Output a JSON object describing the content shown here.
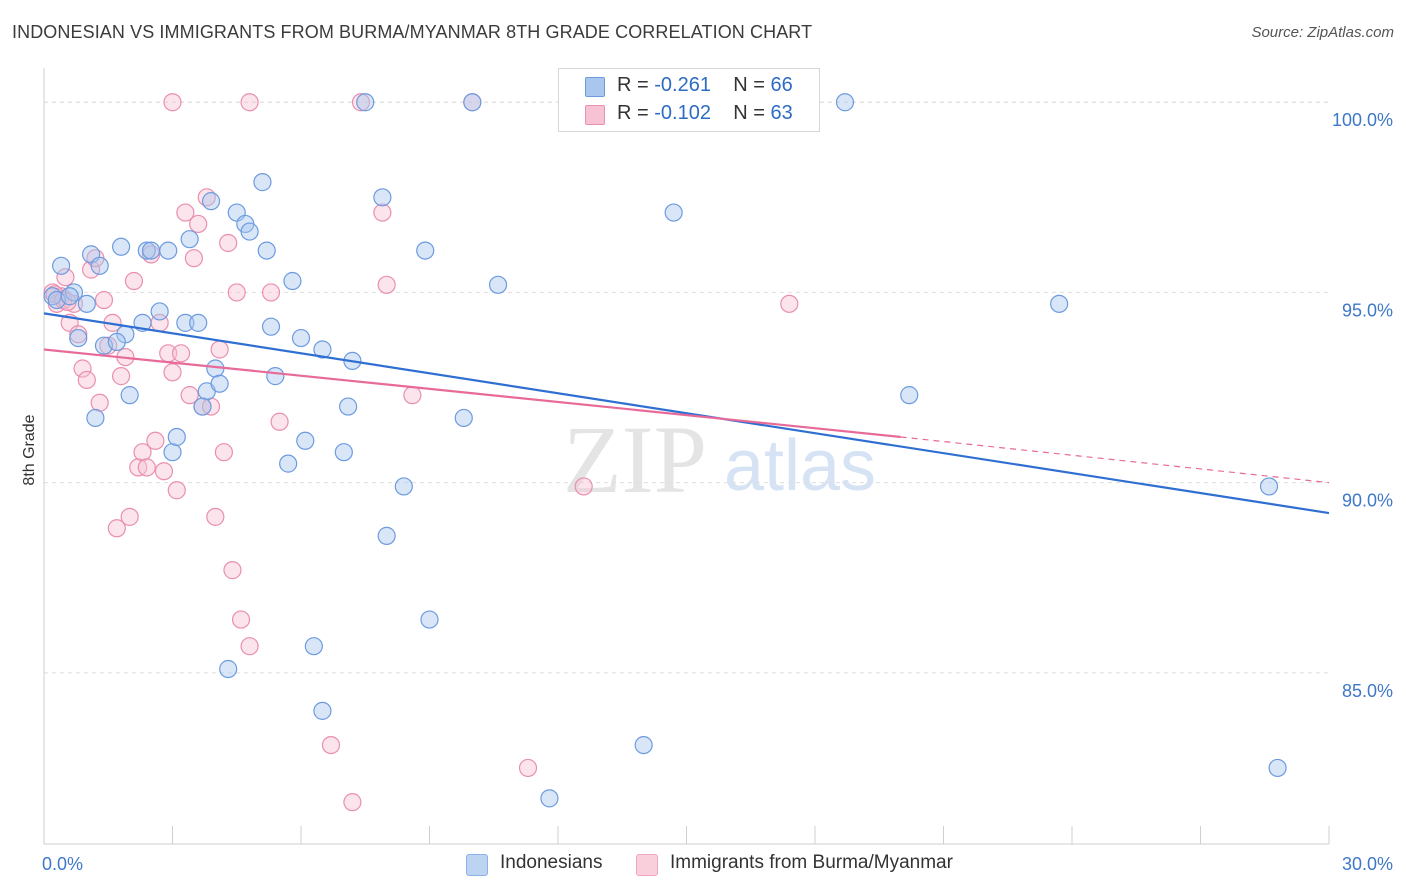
{
  "title": "INDONESIAN VS IMMIGRANTS FROM BURMA/MYANMAR 8TH GRADE CORRELATION CHART",
  "source": "Source: ZipAtlas.com",
  "watermark": {
    "zip": "ZIP",
    "atlas": "atlas"
  },
  "legend_top": [
    {
      "r_label": "R =",
      "r_value": "-0.261",
      "n_label": "N =",
      "n_value": "66"
    },
    {
      "r_label": "R =",
      "r_value": "-0.102",
      "n_label": "N =",
      "n_value": "63"
    }
  ],
  "colors": {
    "blue_fill": "#a9c7ee",
    "blue_stroke": "#6d9be0",
    "blue_line": "#2f6fd1",
    "pink_fill": "#f7c3d4",
    "pink_stroke": "#ea8fae",
    "pink_line": "#e86a98",
    "axis_text": "#3e78c8",
    "grid": "#dedede"
  },
  "chart_data": {
    "type": "scatter",
    "title": "INDONESIAN VS IMMIGRANTS FROM BURMA/MYANMAR 8TH GRADE CORRELATION CHART",
    "xlabel": "",
    "ylabel": "8th Grade",
    "xlim": [
      0,
      30
    ],
    "ylim": [
      80.5,
      100.9
    ],
    "x_tick_labels": [
      "0.0%",
      "30.0%"
    ],
    "y_ticks": [
      85,
      90,
      95,
      100
    ],
    "y_tick_labels": [
      "85.0%",
      "90.0%",
      "95.0%",
      "100.0%"
    ],
    "grid": true,
    "legend_position": "bottom",
    "series": [
      {
        "name": "Indonesians",
        "trend": {
          "x": [
            0,
            30
          ],
          "y": [
            94.45,
            89.2
          ]
        },
        "points": [
          [
            0.2,
            94.9
          ],
          [
            0.4,
            95.7
          ],
          [
            0.7,
            95.0
          ],
          [
            1.0,
            94.7
          ],
          [
            0.8,
            93.8
          ],
          [
            1.1,
            96.0
          ],
          [
            1.3,
            95.7
          ],
          [
            1.2,
            91.7
          ],
          [
            1.4,
            93.6
          ],
          [
            1.9,
            93.9
          ],
          [
            1.7,
            93.7
          ],
          [
            1.8,
            96.2
          ],
          [
            2.0,
            92.3
          ],
          [
            2.3,
            94.2
          ],
          [
            2.4,
            96.1
          ],
          [
            2.5,
            96.1
          ],
          [
            2.7,
            94.5
          ],
          [
            2.9,
            96.1
          ],
          [
            3.0,
            90.8
          ],
          [
            3.1,
            91.2
          ],
          [
            3.3,
            94.2
          ],
          [
            3.4,
            96.4
          ],
          [
            3.6,
            94.2
          ],
          [
            3.8,
            92.4
          ],
          [
            3.7,
            92.0
          ],
          [
            3.9,
            97.4
          ],
          [
            4.0,
            93.0
          ],
          [
            4.1,
            92.6
          ],
          [
            4.3,
            85.1
          ],
          [
            4.5,
            97.1
          ],
          [
            4.7,
            96.8
          ],
          [
            4.8,
            96.6
          ],
          [
            5.1,
            97.9
          ],
          [
            5.2,
            96.1
          ],
          [
            5.3,
            94.1
          ],
          [
            5.4,
            92.8
          ],
          [
            5.7,
            90.5
          ],
          [
            5.8,
            95.3
          ],
          [
            6.0,
            93.8
          ],
          [
            6.1,
            91.1
          ],
          [
            6.3,
            85.7
          ],
          [
            6.5,
            84.0
          ],
          [
            6.5,
            93.5
          ],
          [
            7.0,
            90.8
          ],
          [
            7.1,
            92.0
          ],
          [
            7.2,
            93.2
          ],
          [
            7.5,
            100.0
          ],
          [
            7.9,
            97.5
          ],
          [
            8.0,
            88.6
          ],
          [
            8.4,
            89.9
          ],
          [
            8.9,
            96.1
          ],
          [
            9.0,
            86.4
          ],
          [
            9.8,
            91.7
          ],
          [
            10.0,
            100.0
          ],
          [
            10.6,
            95.2
          ],
          [
            11.8,
            81.7
          ],
          [
            13.0,
            100.0
          ],
          [
            14.0,
            83.1
          ],
          [
            14.7,
            97.1
          ],
          [
            18.7,
            100.0
          ],
          [
            20.2,
            92.3
          ],
          [
            23.7,
            94.7
          ],
          [
            28.6,
            89.9
          ],
          [
            28.8,
            82.5
          ],
          [
            0.3,
            94.8
          ],
          [
            0.6,
            94.9
          ]
        ]
      },
      {
        "name": "Immigrants from Burma/Myanmar",
        "trend": {
          "x": [
            0,
            20
          ],
          "y": [
            93.5,
            91.2
          ]
        },
        "trend_extension": {
          "x": [
            20,
            30
          ],
          "y": [
            91.2,
            90.0
          ]
        },
        "points": [
          [
            0.2,
            95.0
          ],
          [
            0.3,
            94.7
          ],
          [
            0.4,
            94.9
          ],
          [
            0.5,
            95.4
          ],
          [
            0.6,
            94.2
          ],
          [
            0.7,
            94.7
          ],
          [
            0.8,
            93.9
          ],
          [
            0.9,
            93.0
          ],
          [
            1.0,
            92.7
          ],
          [
            1.1,
            95.6
          ],
          [
            1.2,
            95.9
          ],
          [
            1.3,
            92.1
          ],
          [
            1.4,
            94.8
          ],
          [
            1.5,
            93.6
          ],
          [
            1.6,
            94.2
          ],
          [
            1.7,
            88.8
          ],
          [
            1.8,
            92.8
          ],
          [
            1.9,
            93.3
          ],
          [
            2.0,
            89.1
          ],
          [
            2.1,
            95.3
          ],
          [
            2.2,
            90.4
          ],
          [
            2.3,
            90.8
          ],
          [
            2.4,
            90.4
          ],
          [
            2.5,
            96.0
          ],
          [
            2.6,
            91.1
          ],
          [
            2.7,
            94.2
          ],
          [
            2.8,
            90.3
          ],
          [
            2.9,
            93.4
          ],
          [
            3.0,
            92.9
          ],
          [
            3.1,
            89.8
          ],
          [
            3.2,
            93.4
          ],
          [
            3.3,
            97.1
          ],
          [
            3.4,
            92.3
          ],
          [
            3.5,
            95.9
          ],
          [
            3.6,
            96.8
          ],
          [
            3.7,
            92.0
          ],
          [
            3.8,
            97.5
          ],
          [
            3.9,
            92.0
          ],
          [
            4.0,
            89.1
          ],
          [
            4.1,
            93.5
          ],
          [
            4.2,
            90.8
          ],
          [
            4.3,
            96.3
          ],
          [
            4.4,
            87.7
          ],
          [
            4.5,
            95.0
          ],
          [
            4.6,
            86.4
          ],
          [
            4.8,
            85.7
          ],
          [
            5.3,
            95.0
          ],
          [
            5.5,
            91.6
          ],
          [
            3.0,
            100.0
          ],
          [
            4.8,
            100.0
          ],
          [
            7.2,
            81.6
          ],
          [
            7.4,
            100.0
          ],
          [
            6.7,
            83.1
          ],
          [
            7.9,
            97.1
          ],
          [
            8.0,
            95.2
          ],
          [
            8.6,
            92.3
          ],
          [
            10.0,
            100.0
          ],
          [
            11.3,
            82.5
          ],
          [
            12.6,
            89.9
          ],
          [
            17.4,
            94.7
          ],
          [
            0.25,
            94.95
          ],
          [
            0.45,
            94.8
          ],
          [
            0.55,
            94.75
          ]
        ]
      }
    ]
  },
  "bottom_legend": [
    "Indonesians",
    "Immigrants from Burma/Myanmar"
  ]
}
